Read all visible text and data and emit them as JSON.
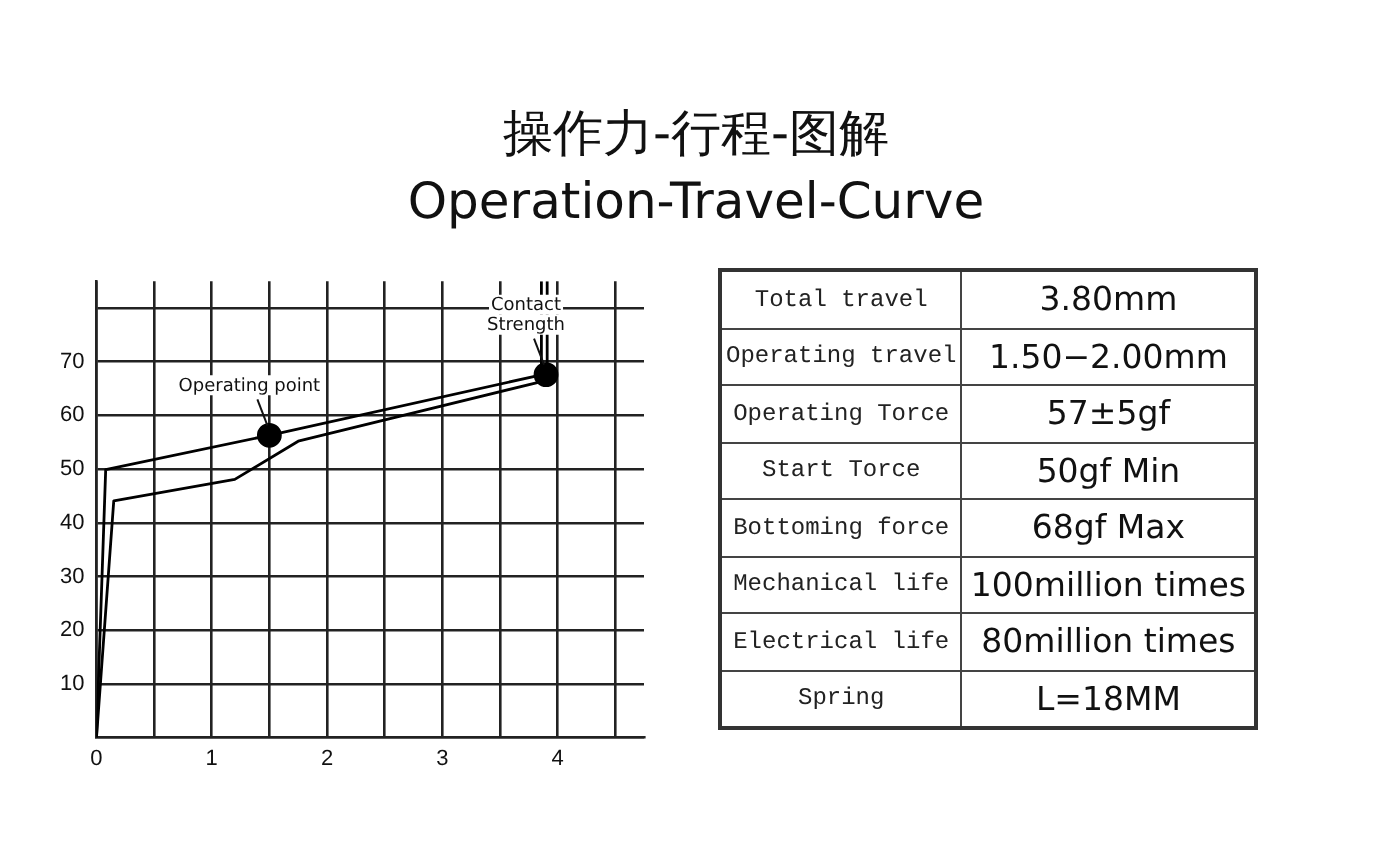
{
  "chart_data": [
    {
      "type": "line",
      "title": "操作力-行程-图解",
      "subtitle": "Operation-Travel-Curve",
      "series": [
        {
          "type": "line",
          "color": "#000000",
          "marker": "none",
          "x": [
            0,
            0.08,
            1.5,
            3.91,
            3.91
          ],
          "values": [
            0,
            49.9,
            56.3,
            67.8,
            85
          ]
        },
        {
          "type": "line",
          "color": "#000000",
          "marker": "none",
          "x": [
            0,
            0.15,
            1.2,
            1.75,
            3.86,
            3.86
          ],
          "values": [
            0,
            44.1,
            48.1,
            55.2,
            66.3,
            85
          ]
        },
        {
          "type": "scatter",
          "color": "#000000",
          "marker": "circle",
          "x": [
            1.5,
            3.9
          ],
          "values": [
            56.3,
            67.6
          ]
        }
      ],
      "annotations": [
        {
          "text": "Operating point",
          "x": 1.5,
          "y": 56.3
        },
        {
          "text": "Contact\nStrength",
          "x": 3.9,
          "y": 67.6
        }
      ],
      "xlim": [
        0,
        4.75
      ],
      "xticks": [
        0,
        {
          "value": 0.5,
          "label": null
        },
        1,
        {
          "value": 1.5,
          "label": null
        },
        2,
        {
          "value": 2.5,
          "label": null
        },
        3,
        {
          "value": 3.5,
          "label": null
        },
        4,
        {
          "value": 4.5,
          "label": null
        }
      ],
      "ylim": [
        0,
        85
      ],
      "yticks": [
        {
          "value": 0,
          "label": null
        },
        10,
        20,
        30,
        40,
        50,
        60,
        70,
        {
          "value": 80,
          "label": null
        }
      ],
      "grid": true,
      "legend": false
    },
    {
      "type": "other",
      "annotations": [
        "Total travel",
        "3.80mm",
        "Operating travel",
        "1.50−2.00mm",
        "Operating Torce",
        "57±5gf",
        "Start Torce",
        "50gf  Min",
        "Bottoming force",
        "68gf  Max",
        "Mechanical life",
        "100million  times",
        "Electrical life",
        "80million  times",
        "Spring",
        "L=18MM"
      ]
    }
  ]
}
